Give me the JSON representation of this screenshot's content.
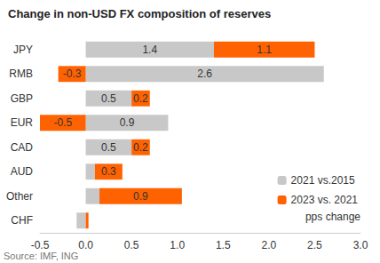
{
  "chart_data": {
    "type": "bar",
    "orientation": "horizontal",
    "stacked": true,
    "title": "Change in non-USD FX composition of reserves",
    "xlabel": "pps change",
    "source": "Source: IMF, ING",
    "categories": [
      "JPY",
      "RMB",
      "GBP",
      "EUR",
      "CAD",
      "AUD",
      "Other",
      "CHF"
    ],
    "series": [
      {
        "name": "2021 vs.2015",
        "color": "#c8c8c8",
        "values": [
          1.4,
          2.6,
          0.5,
          0.9,
          0.5,
          0.1,
          0.15,
          -0.1
        ],
        "value_labels": [
          "1.4",
          "2.6",
          "0.5",
          "0.9",
          "0.5",
          null,
          null,
          null
        ]
      },
      {
        "name": "2023 vs. 2021",
        "color": "#ff6200",
        "values": [
          1.1,
          -0.3,
          0.2,
          -0.5,
          0.2,
          0.3,
          0.9,
          0.03
        ],
        "value_labels": [
          "1.1",
          "-0.3",
          "0.2",
          "-0.5",
          "0.2",
          "0.3",
          "0.9",
          null
        ]
      }
    ],
    "xlim": [
      -0.5,
      3.0
    ],
    "xticks": [
      -0.5,
      {
        "value": 0,
        "label": "0.0"
      },
      0.5,
      {
        "value": 1,
        "label": "1.0"
      },
      1.5,
      {
        "value": 2,
        "label": "2.0"
      },
      2.5,
      {
        "value": 3,
        "label": "3.0"
      }
    ],
    "grid": false,
    "legend": "right",
    "data_labels": true
  }
}
